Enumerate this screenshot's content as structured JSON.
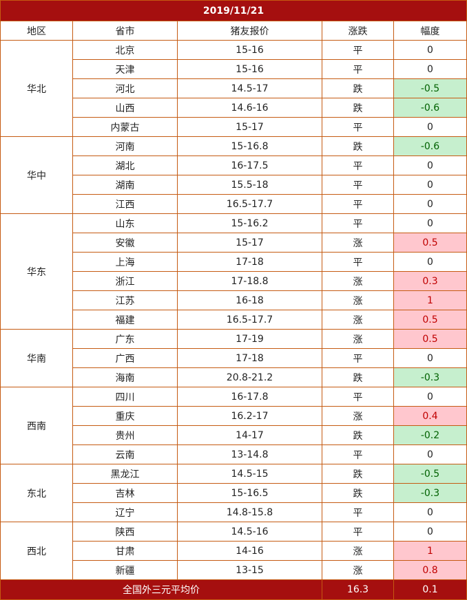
{
  "title": "2019/11/21",
  "headers": [
    "地区",
    "省市",
    "猪友报价",
    "涨跌",
    "幅度"
  ],
  "regions": [
    {
      "name": "华北",
      "rows": [
        {
          "province": "北京",
          "price": "15-16",
          "trend": "平",
          "change": "0",
          "dir": "flat"
        },
        {
          "province": "天津",
          "price": "15-16",
          "trend": "平",
          "change": "0",
          "dir": "flat"
        },
        {
          "province": "河北",
          "price": "14.5-17",
          "trend": "跌",
          "change": "-0.5",
          "dir": "down"
        },
        {
          "province": "山西",
          "price": "14.6-16",
          "trend": "跌",
          "change": "-0.6",
          "dir": "down"
        },
        {
          "province": "内蒙古",
          "price": "15-17",
          "trend": "平",
          "change": "0",
          "dir": "flat"
        }
      ]
    },
    {
      "name": "华中",
      "rows": [
        {
          "province": "河南",
          "price": "15-16.8",
          "trend": "跌",
          "change": "-0.6",
          "dir": "down"
        },
        {
          "province": "湖北",
          "price": "16-17.5",
          "trend": "平",
          "change": "0",
          "dir": "flat"
        },
        {
          "province": "湖南",
          "price": "15.5-18",
          "trend": "平",
          "change": "0",
          "dir": "flat"
        },
        {
          "province": "江西",
          "price": "16.5-17.7",
          "trend": "平",
          "change": "0",
          "dir": "flat"
        }
      ]
    },
    {
      "name": "华东",
      "rows": [
        {
          "province": "山东",
          "price": "15-16.2",
          "trend": "平",
          "change": "0",
          "dir": "flat"
        },
        {
          "province": "安徽",
          "price": "15-17",
          "trend": "涨",
          "change": "0.5",
          "dir": "up"
        },
        {
          "province": "上海",
          "price": "17-18",
          "trend": "平",
          "change": "0",
          "dir": "flat"
        },
        {
          "province": "浙江",
          "price": "17-18.8",
          "trend": "涨",
          "change": "0.3",
          "dir": "up"
        },
        {
          "province": "江苏",
          "price": "16-18",
          "trend": "涨",
          "change": "1",
          "dir": "up"
        },
        {
          "province": "福建",
          "price": "16.5-17.7",
          "trend": "涨",
          "change": "0.5",
          "dir": "up"
        }
      ]
    },
    {
      "name": "华南",
      "rows": [
        {
          "province": "广东",
          "price": "17-19",
          "trend": "涨",
          "change": "0.5",
          "dir": "up"
        },
        {
          "province": "广西",
          "price": "17-18",
          "trend": "平",
          "change": "0",
          "dir": "flat"
        },
        {
          "province": "海南",
          "price": "20.8-21.2",
          "trend": "跌",
          "change": "-0.3",
          "dir": "down"
        }
      ]
    },
    {
      "name": "西南",
      "rows": [
        {
          "province": "四川",
          "price": "16-17.8",
          "trend": "平",
          "change": "0",
          "dir": "flat"
        },
        {
          "province": "重庆",
          "price": "16.2-17",
          "trend": "涨",
          "change": "0.4",
          "dir": "up"
        },
        {
          "province": "贵州",
          "price": "14-17",
          "trend": "跌",
          "change": "-0.2",
          "dir": "down"
        },
        {
          "province": "云南",
          "price": "13-14.8",
          "trend": "平",
          "change": "0",
          "dir": "flat"
        }
      ]
    },
    {
      "name": "东北",
      "rows": [
        {
          "province": "黑龙江",
          "price": "14.5-15",
          "trend": "跌",
          "change": "-0.5",
          "dir": "down"
        },
        {
          "province": "吉林",
          "price": "15-16.5",
          "trend": "跌",
          "change": "-0.3",
          "dir": "down"
        },
        {
          "province": "辽宁",
          "price": "14.8-15.8",
          "trend": "平",
          "change": "0",
          "dir": "flat"
        }
      ]
    },
    {
      "name": "西北",
      "rows": [
        {
          "province": "陕西",
          "price": "14.5-16",
          "trend": "平",
          "change": "0",
          "dir": "flat"
        },
        {
          "province": "甘肃",
          "price": "14-16",
          "trend": "涨",
          "change": "1",
          "dir": "up"
        },
        {
          "province": "新疆",
          "price": "13-15",
          "trend": "涨",
          "change": "0.8",
          "dir": "up"
        }
      ]
    }
  ],
  "footer": {
    "label": "全国外三元平均价",
    "avg_price": "16.3",
    "change": "0.1"
  },
  "colors": {
    "header_bg": "#a50f0f",
    "border": "#c55a11",
    "up_bg": "#ffc7ce",
    "up_text": "#c00000",
    "down_bg": "#c6efce",
    "down_text": "#006100"
  }
}
